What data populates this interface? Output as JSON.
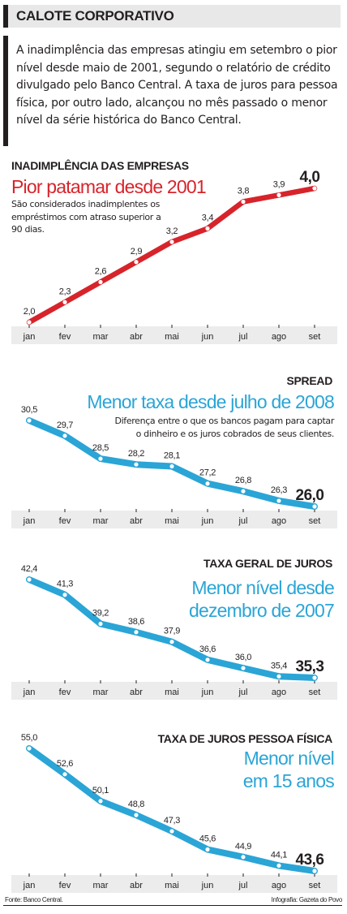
{
  "header": {
    "title": "CALOTE CORPORATIVO"
  },
  "intro": "A inadimplência das empresas  atingiu em setembro o pior nível desde maio de 2001, segundo o relatório de crédito divulgado pelo Banco Central. A taxa de juros para pessoa física, por outro lado, alcançou no mês passado o menor nível da série histórica do Banco Central.",
  "sections": [
    {
      "title": "INADIMPLÊNCIA DAS EMPRESAS",
      "headline": "Pior patamar desde 2001",
      "note": "São considerados inadimplentes os empréstimos com atraso superior a 90 dias."
    },
    {
      "title": "SPREAD",
      "headline": "Menor taxa desde julho de 2008",
      "note": "Diferença entre o que os bancos pagam para captar o dinheiro e os juros cobrados de seus clientes."
    },
    {
      "title": "TAXA GERAL DE JUROS",
      "headline": "Menor nível desde dezembro de 2007",
      "note": ""
    },
    {
      "title": "TAXA DE JUROS PESSOA FÍSICA",
      "headline": "Menor nível em 15 anos",
      "note": ""
    }
  ],
  "chart_data": [
    {
      "type": "line",
      "title": "INADIMPLÊNCIA DAS EMPRESAS",
      "categories": [
        "jan",
        "fev",
        "mar",
        "abr",
        "mai",
        "jun",
        "jul",
        "ago",
        "set"
      ],
      "values": [
        2.0,
        2.3,
        2.6,
        2.9,
        3.2,
        3.4,
        3.8,
        3.9,
        4.0
      ],
      "labels": [
        "2,0",
        "2,3",
        "2,6",
        "2,9",
        "3,2",
        "3,4",
        "3,8",
        "3,9",
        "4,0"
      ],
      "color": "#d7242b",
      "ylim": [
        2.0,
        4.0
      ],
      "grid": false
    },
    {
      "type": "line",
      "title": "SPREAD",
      "categories": [
        "jan",
        "fev",
        "mar",
        "abr",
        "mai",
        "jun",
        "jul",
        "ago",
        "set"
      ],
      "values": [
        30.5,
        29.7,
        28.5,
        28.2,
        28.1,
        27.2,
        26.8,
        26.3,
        26.0
      ],
      "labels": [
        "30,5",
        "29,7",
        "28,5",
        "28,2",
        "28,1",
        "27,2",
        "26,8",
        "26,3",
        "26,0"
      ],
      "color": "#2aa5d6",
      "ylim": [
        26.0,
        30.5
      ],
      "grid": false
    },
    {
      "type": "line",
      "title": "TAXA GERAL DE JUROS",
      "categories": [
        "jan",
        "fev",
        "mar",
        "abr",
        "mai",
        "jun",
        "jul",
        "ago",
        "set"
      ],
      "values": [
        42.4,
        41.3,
        39.2,
        38.6,
        37.9,
        36.6,
        36.0,
        35.4,
        35.3
      ],
      "labels": [
        "42,4",
        "41,3",
        "39,2",
        "38,6",
        "37,9",
        "36,6",
        "36,0",
        "35,4",
        "35,3"
      ],
      "color": "#2aa5d6",
      "ylim": [
        35.3,
        42.4
      ],
      "grid": false
    },
    {
      "type": "line",
      "title": "TAXA DE JUROS PESSOA FÍSICA",
      "categories": [
        "jan",
        "fev",
        "mar",
        "abr",
        "mai",
        "jun",
        "jul",
        "ago",
        "set"
      ],
      "values": [
        55.0,
        52.6,
        50.1,
        48.8,
        47.3,
        45.6,
        44.9,
        44.1,
        43.6
      ],
      "labels": [
        "55,0",
        "52,6",
        "50,1",
        "48,8",
        "47,3",
        "45,6",
        "44,9",
        "44,1",
        "43,6"
      ],
      "color": "#2aa5d6",
      "ylim": [
        43.6,
        55.0
      ],
      "grid": false
    }
  ],
  "footer": {
    "source": "Fonte: Banco Central.",
    "credit": "Infografia: Gazeta do Povo"
  }
}
